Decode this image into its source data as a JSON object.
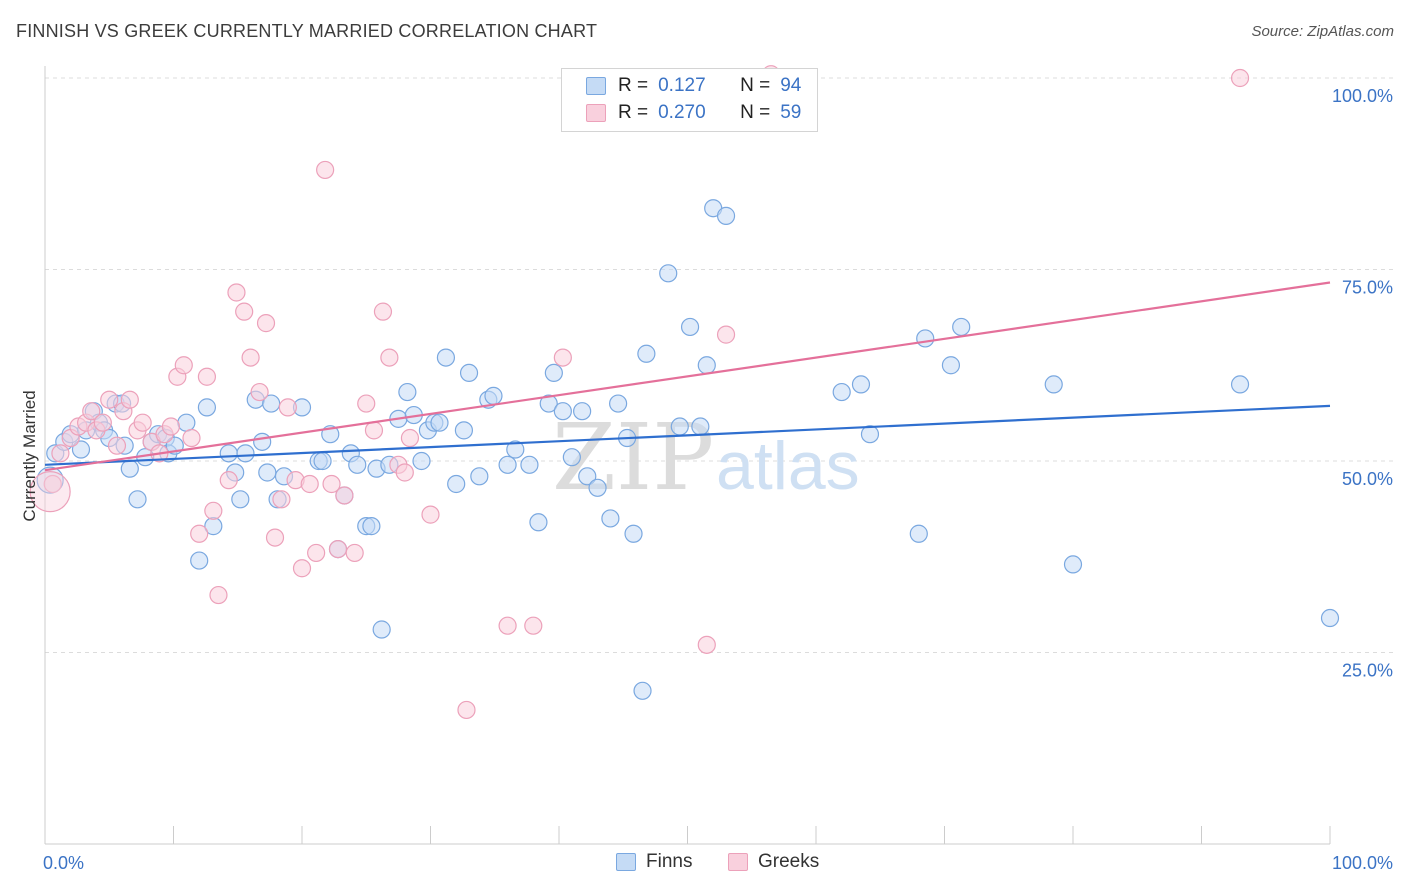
{
  "title": "FINNISH VS GREEK CURRENTLY MARRIED CORRELATION CHART",
  "source": "Source: ZipAtlas.com",
  "watermark": {
    "zip": "ZIP",
    "atlas": "atlas"
  },
  "legend": {
    "rows": [
      {
        "r_label": "R =",
        "r_value": "0.127",
        "n_label": "N =",
        "n_value": "94",
        "color": "#8db8ea"
      },
      {
        "r_label": "R =",
        "r_value": "0.270",
        "n_label": "N =",
        "n_value": "59",
        "color": "#f2a6c0"
      }
    ]
  },
  "bottom_legend": {
    "finns": "Finns",
    "greeks": "Greeks"
  },
  "colors": {
    "finns_fill": "#c5dbf5",
    "finns_stroke": "#7aa8e0",
    "finns_line": "#2f6fcf",
    "greeks_fill": "#f9d0dd",
    "greeks_stroke": "#eca1ba",
    "greeks_line": "#e4709a",
    "axis_label": "#3b73c5"
  },
  "chart_data": {
    "type": "scatter",
    "title": "FINNISH VS GREEK CURRENTLY MARRIED CORRELATION CHART",
    "xlabel": "",
    "ylabel": "Currently Married",
    "xlim": [
      0,
      100
    ],
    "ylim": [
      0,
      100
    ],
    "x_tick_labels": [
      "0.0%",
      "100.0%"
    ],
    "y_tick_labels": [
      "25.0%",
      "50.0%",
      "75.0%",
      "100.0%"
    ],
    "y_ticks": [
      25,
      50,
      75,
      100
    ],
    "grid": "horizontal dashed",
    "series": [
      {
        "name": "Finns",
        "r": 0.127,
        "n": 94,
        "trend": {
          "x": [
            0,
            100
          ],
          "y": [
            49.5,
            57.2
          ]
        },
        "points": [
          [
            0.8,
            51
          ],
          [
            1.5,
            52.5
          ],
          [
            2.0,
            53.5
          ],
          [
            2.8,
            51.5
          ],
          [
            3.2,
            54
          ],
          [
            3.8,
            56.5
          ],
          [
            4.2,
            55
          ],
          [
            4.6,
            54
          ],
          [
            5.0,
            53
          ],
          [
            5.5,
            57.5
          ],
          [
            6.0,
            57.5
          ],
          [
            6.2,
            52
          ],
          [
            6.6,
            49
          ],
          [
            7.2,
            45
          ],
          [
            7.8,
            50.5
          ],
          [
            8.3,
            52.5
          ],
          [
            8.8,
            53.5
          ],
          [
            9.4,
            53
          ],
          [
            9.6,
            51
          ],
          [
            10.1,
            52
          ],
          [
            11.0,
            55
          ],
          [
            12.0,
            37
          ],
          [
            12.6,
            57
          ],
          [
            13.1,
            41.5
          ],
          [
            14.3,
            51
          ],
          [
            14.8,
            48.5
          ],
          [
            15.2,
            45
          ],
          [
            15.6,
            51
          ],
          [
            16.4,
            58
          ],
          [
            16.9,
            52.5
          ],
          [
            17.3,
            48.5
          ],
          [
            17.6,
            57.5
          ],
          [
            18.1,
            45
          ],
          [
            18.6,
            48
          ],
          [
            20.0,
            57
          ],
          [
            21.3,
            50
          ],
          [
            21.6,
            50
          ],
          [
            22.2,
            53.5
          ],
          [
            22.8,
            38.5
          ],
          [
            23.3,
            45.5
          ],
          [
            23.8,
            51
          ],
          [
            24.3,
            49.5
          ],
          [
            25.0,
            41.5
          ],
          [
            25.4,
            41.5
          ],
          [
            25.8,
            49
          ],
          [
            26.2,
            28
          ],
          [
            26.8,
            49.5
          ],
          [
            27.5,
            55.5
          ],
          [
            28.2,
            59
          ],
          [
            28.7,
            56
          ],
          [
            29.3,
            50
          ],
          [
            29.8,
            54
          ],
          [
            30.3,
            55
          ],
          [
            30.7,
            55
          ],
          [
            31.2,
            63.5
          ],
          [
            32.0,
            47
          ],
          [
            32.6,
            54
          ],
          [
            33.0,
            61.5
          ],
          [
            33.8,
            48
          ],
          [
            34.5,
            58
          ],
          [
            34.9,
            58.5
          ],
          [
            36.0,
            49.5
          ],
          [
            36.6,
            51.5
          ],
          [
            37.7,
            49.5
          ],
          [
            38.4,
            42
          ],
          [
            39.2,
            57.5
          ],
          [
            39.6,
            61.5
          ],
          [
            40.3,
            56.5
          ],
          [
            41.0,
            50.5
          ],
          [
            41.8,
            56.5
          ],
          [
            42.2,
            48
          ],
          [
            43.0,
            46.5
          ],
          [
            44.0,
            42.5
          ],
          [
            44.6,
            57.5
          ],
          [
            45.3,
            53
          ],
          [
            45.8,
            40.5
          ],
          [
            46.5,
            20
          ],
          [
            46.8,
            64
          ],
          [
            48.5,
            74.5
          ],
          [
            49.4,
            54.5
          ],
          [
            50.2,
            67.5
          ],
          [
            51.0,
            54.5
          ],
          [
            51.5,
            62.5
          ],
          [
            52.0,
            83
          ],
          [
            53.0,
            82
          ],
          [
            62.0,
            59
          ],
          [
            63.5,
            60
          ],
          [
            64.2,
            53.5
          ],
          [
            68.0,
            40.5
          ],
          [
            68.5,
            66
          ],
          [
            70.5,
            62.5
          ],
          [
            71.3,
            67.5
          ],
          [
            78.5,
            60
          ],
          [
            80.0,
            36.5
          ],
          [
            93.0,
            60
          ],
          [
            100,
            29.5
          ]
        ]
      },
      {
        "name": "Greeks",
        "r": 0.27,
        "n": 59,
        "trend": {
          "x": [
            0,
            100
          ],
          "y": [
            48.8,
            73.3
          ]
        },
        "points": [
          [
            0.6,
            47
          ],
          [
            1.2,
            51
          ],
          [
            2.0,
            53
          ],
          [
            2.6,
            54.5
          ],
          [
            3.2,
            55
          ],
          [
            3.6,
            56.5
          ],
          [
            4.0,
            54
          ],
          [
            4.5,
            55
          ],
          [
            5.0,
            58
          ],
          [
            5.6,
            52
          ],
          [
            6.1,
            56.5
          ],
          [
            6.6,
            58
          ],
          [
            7.2,
            54
          ],
          [
            7.6,
            55
          ],
          [
            8.3,
            52.5
          ],
          [
            8.9,
            51
          ],
          [
            9.3,
            53.5
          ],
          [
            9.8,
            54.5
          ],
          [
            10.3,
            61
          ],
          [
            10.8,
            62.5
          ],
          [
            11.4,
            53
          ],
          [
            12.0,
            40.5
          ],
          [
            12.6,
            61
          ],
          [
            13.1,
            43.5
          ],
          [
            13.5,
            32.5
          ],
          [
            14.3,
            47.5
          ],
          [
            14.9,
            72
          ],
          [
            15.5,
            69.5
          ],
          [
            16.0,
            63.5
          ],
          [
            16.7,
            59
          ],
          [
            17.2,
            68
          ],
          [
            17.9,
            40
          ],
          [
            18.4,
            45
          ],
          [
            18.9,
            57
          ],
          [
            19.5,
            47.5
          ],
          [
            20.0,
            36
          ],
          [
            20.6,
            47
          ],
          [
            21.1,
            38
          ],
          [
            21.8,
            88
          ],
          [
            22.3,
            47
          ],
          [
            22.8,
            38.5
          ],
          [
            23.3,
            45.5
          ],
          [
            24.1,
            38
          ],
          [
            25.0,
            57.5
          ],
          [
            25.6,
            54
          ],
          [
            26.3,
            69.5
          ],
          [
            26.8,
            63.5
          ],
          [
            27.5,
            49.5
          ],
          [
            28.0,
            48.5
          ],
          [
            28.4,
            53
          ],
          [
            30.0,
            43
          ],
          [
            32.8,
            17.5
          ],
          [
            36.0,
            28.5
          ],
          [
            38.0,
            28.5
          ],
          [
            40.3,
            63.5
          ],
          [
            51.5,
            26
          ],
          [
            53.0,
            66.5
          ],
          [
            56.5,
            100.5
          ],
          [
            93,
            100
          ]
        ]
      }
    ]
  }
}
